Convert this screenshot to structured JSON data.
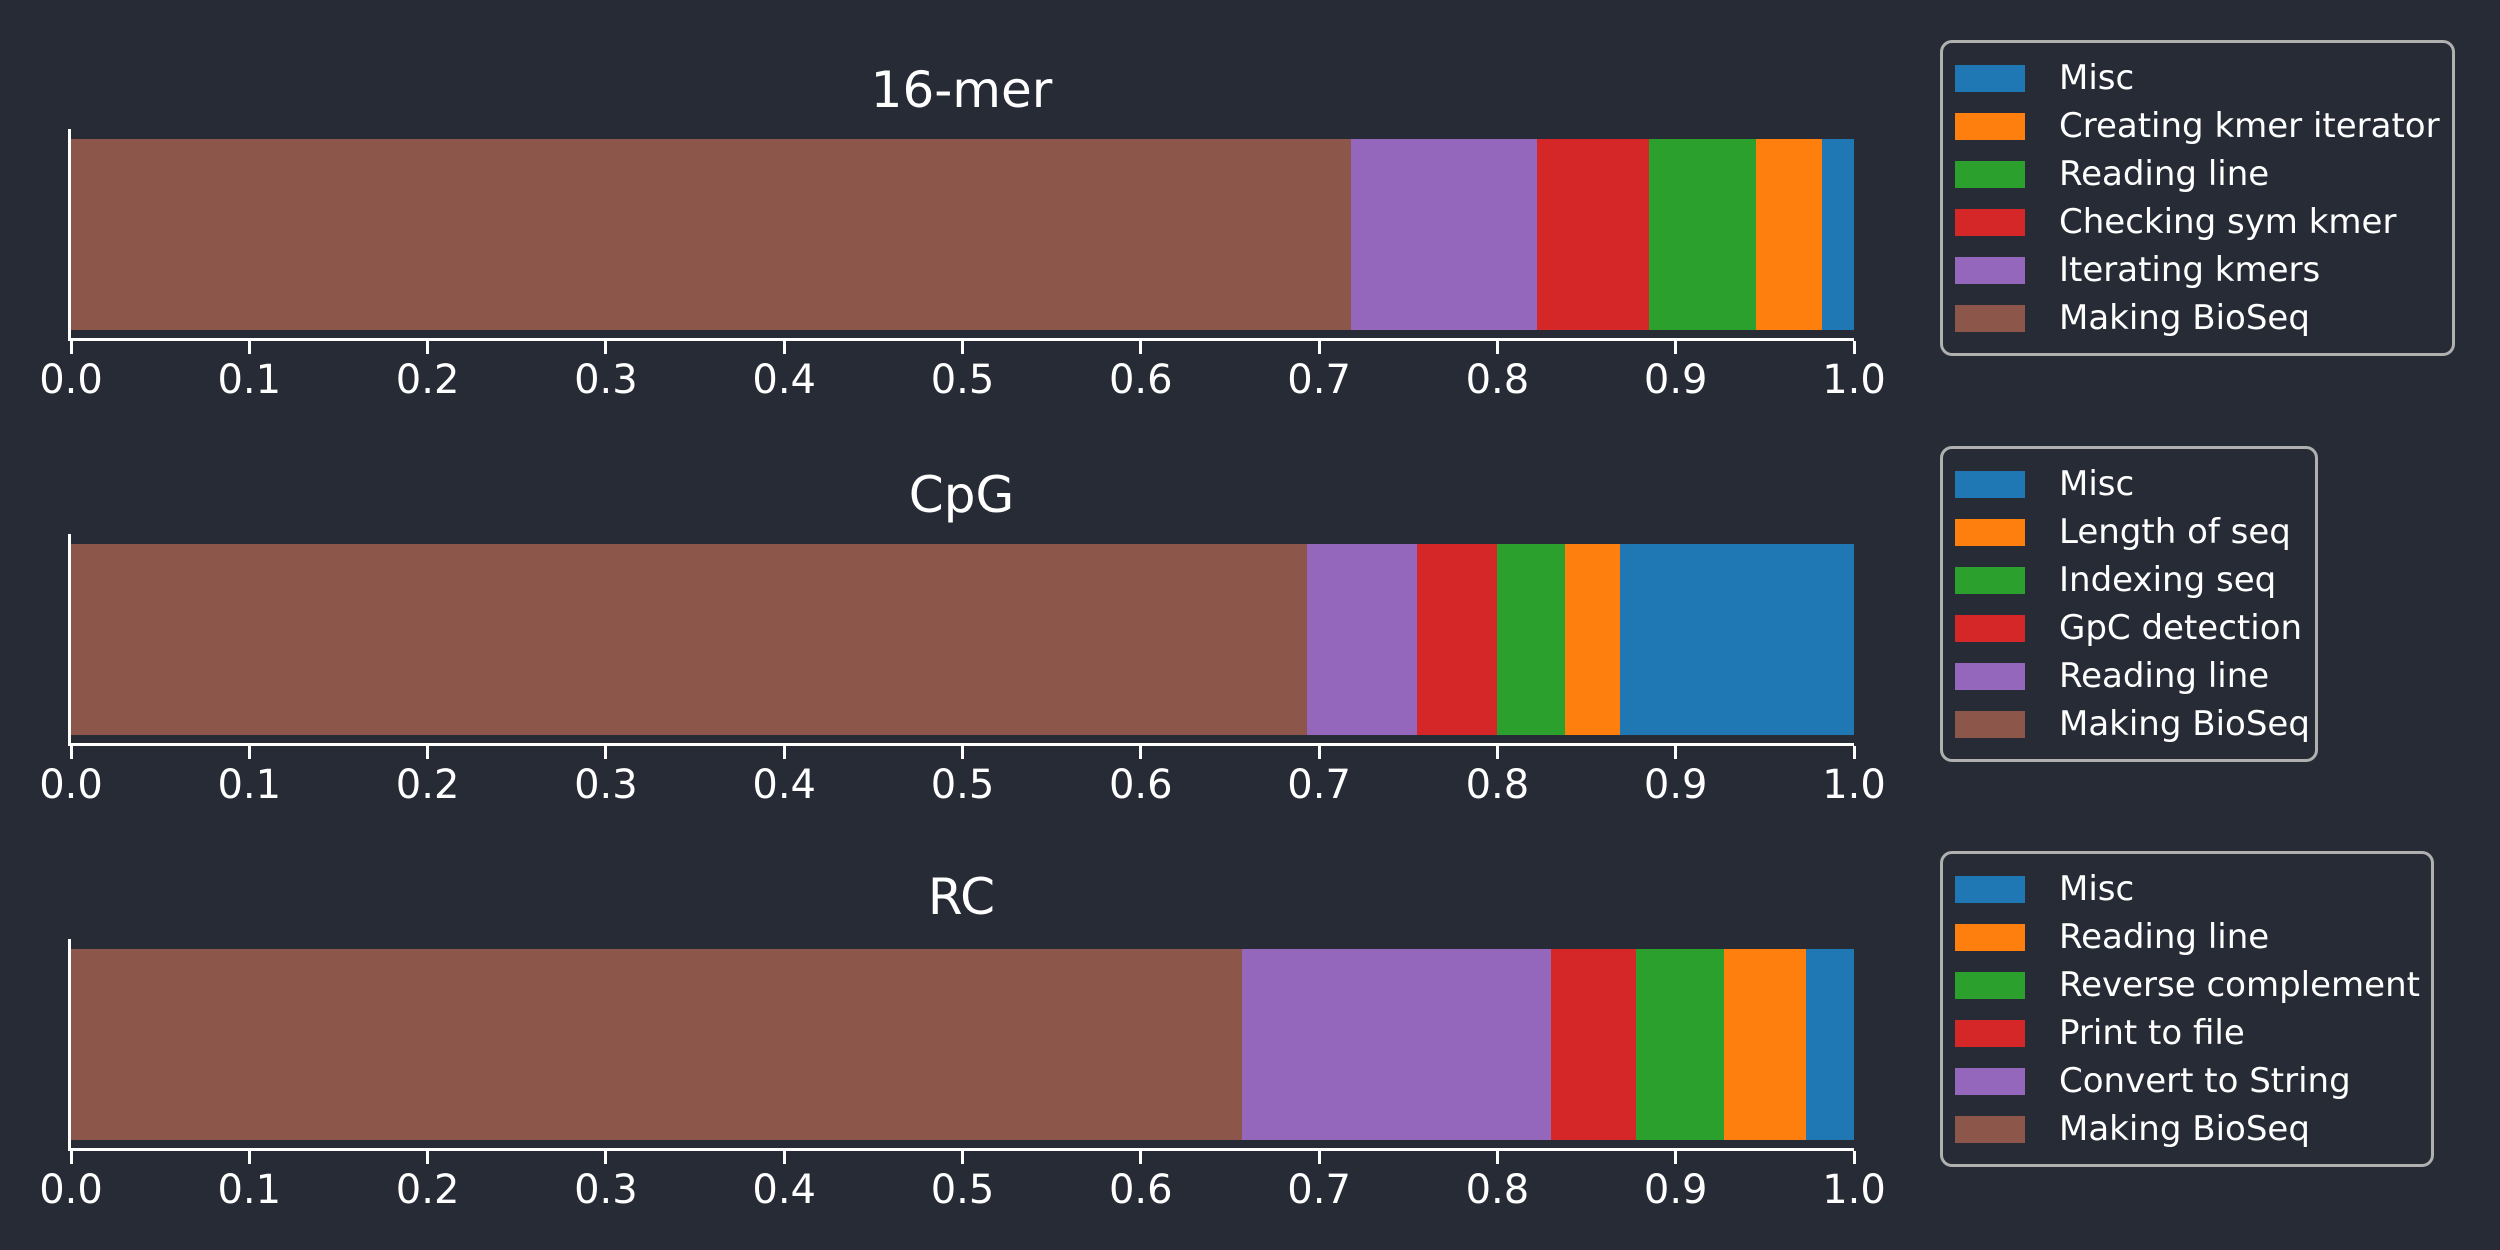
{
  "figure": {
    "background": "#272b36",
    "text_color": "#ffffff",
    "axis_color": "#ffffff",
    "legend_border_color": "#b0b0b0"
  },
  "palette": {
    "blue": "#1f77b4",
    "orange": "#ff7f0e",
    "green": "#2ca02c",
    "red": "#d62728",
    "purple": "#9467bd",
    "brown": "#8c564b"
  },
  "x_axis": {
    "min": 0.0,
    "max": 1.0,
    "tick_labels": [
      "0.0",
      "0.1",
      "0.2",
      "0.3",
      "0.4",
      "0.5",
      "0.6",
      "0.7",
      "0.8",
      "0.9",
      "1.0"
    ]
  },
  "chart_data": [
    {
      "type": "bar",
      "orientation": "horizontal",
      "stacked": true,
      "title": "16-mer",
      "xlim": [
        0.0,
        1.0
      ],
      "legend_position": "right",
      "legend": [
        {
          "label": "Misc",
          "color": "blue"
        },
        {
          "label": "Creating kmer iterator",
          "color": "orange"
        },
        {
          "label": "Reading line",
          "color": "green"
        },
        {
          "label": "Checking sym kmer",
          "color": "red"
        },
        {
          "label": "Iterating kmers",
          "color": "purple"
        },
        {
          "label": "Making BioSeq",
          "color": "brown"
        }
      ],
      "segments": [
        {
          "label": "Making BioSeq",
          "color": "brown",
          "value": 0.718
        },
        {
          "label": "Iterating kmers",
          "color": "purple",
          "value": 0.104
        },
        {
          "label": "Checking sym kmer",
          "color": "red",
          "value": 0.063
        },
        {
          "label": "Reading line",
          "color": "green",
          "value": 0.06
        },
        {
          "label": "Creating kmer iterator",
          "color": "orange",
          "value": 0.037
        },
        {
          "label": "Misc",
          "color": "blue",
          "value": 0.018
        }
      ]
    },
    {
      "type": "bar",
      "orientation": "horizontal",
      "stacked": true,
      "title": "CpG",
      "xlim": [
        0.0,
        1.0
      ],
      "legend_position": "right",
      "legend": [
        {
          "label": "Misc",
          "color": "blue"
        },
        {
          "label": "Length of seq",
          "color": "orange"
        },
        {
          "label": "Indexing seq",
          "color": "green"
        },
        {
          "label": "GpC detection",
          "color": "red"
        },
        {
          "label": "Reading line",
          "color": "purple"
        },
        {
          "label": "Making BioSeq",
          "color": "brown"
        }
      ],
      "segments": [
        {
          "label": "Making BioSeq",
          "color": "brown",
          "value": 0.693
        },
        {
          "label": "Reading line",
          "color": "purple",
          "value": 0.062
        },
        {
          "label": "GpC detection",
          "color": "red",
          "value": 0.045
        },
        {
          "label": "Indexing seq",
          "color": "green",
          "value": 0.038
        },
        {
          "label": "Length of seq",
          "color": "orange",
          "value": 0.031
        },
        {
          "label": "Misc",
          "color": "blue",
          "value": 0.131
        }
      ]
    },
    {
      "type": "bar",
      "orientation": "horizontal",
      "stacked": true,
      "title": "RC",
      "xlim": [
        0.0,
        1.0
      ],
      "legend_position": "right",
      "legend": [
        {
          "label": "Misc",
          "color": "blue"
        },
        {
          "label": "Reading line",
          "color": "orange"
        },
        {
          "label": "Reverse complement",
          "color": "green"
        },
        {
          "label": "Print to file",
          "color": "red"
        },
        {
          "label": "Convert to String",
          "color": "purple"
        },
        {
          "label": "Making BioSeq",
          "color": "brown"
        }
      ],
      "segments": [
        {
          "label": "Making BioSeq",
          "color": "brown",
          "value": 0.657
        },
        {
          "label": "Convert to String",
          "color": "purple",
          "value": 0.173
        },
        {
          "label": "Print to file",
          "color": "red",
          "value": 0.048
        },
        {
          "label": "Reverse complement",
          "color": "green",
          "value": 0.049
        },
        {
          "label": "Reading line",
          "color": "orange",
          "value": 0.046
        },
        {
          "label": "Misc",
          "color": "blue",
          "value": 0.027
        }
      ]
    }
  ]
}
